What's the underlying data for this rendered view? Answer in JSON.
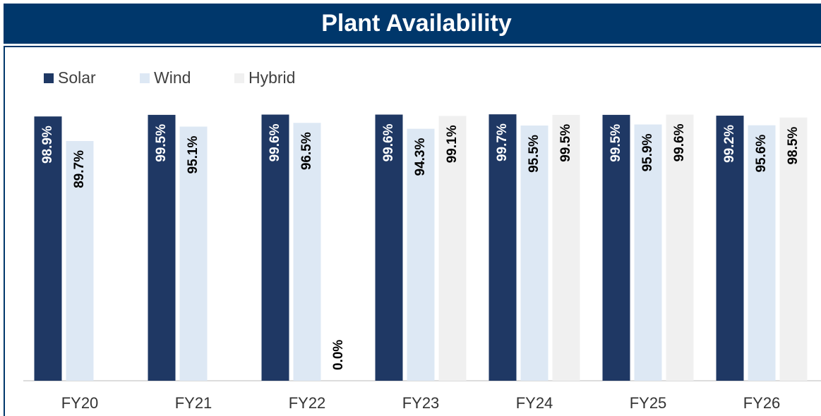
{
  "chart_data": {
    "type": "bar",
    "title": "Plant Availability",
    "categories": [
      "FY20",
      "FY21",
      "FY22",
      "FY23",
      "FY24",
      "FY25",
      "FY26"
    ],
    "series": [
      {
        "name": "Solar",
        "color": "#1f3864",
        "values": [
          98.9,
          99.5,
          99.6,
          99.6,
          99.7,
          99.5,
          99.2
        ],
        "value_labels": [
          "98.9%",
          "99.5%",
          "99.6%",
          "99.6%",
          "99.7%",
          "99.5%",
          "99.2%"
        ]
      },
      {
        "name": "Wind",
        "color": "#dde8f4",
        "values": [
          89.7,
          95.1,
          96.5,
          94.3,
          95.5,
          95.9,
          95.6
        ],
        "value_labels": [
          "89.7%",
          "95.1%",
          "96.5%",
          "94.3%",
          "95.5%",
          "95.9%",
          "95.6%"
        ]
      },
      {
        "name": "Hybrid",
        "color": "#f0f0f0",
        "values": [
          null,
          null,
          0.0,
          99.1,
          99.5,
          99.6,
          98.5
        ],
        "value_labels": [
          null,
          null,
          "0.0%",
          "99.1%",
          "99.5%",
          "99.6%",
          "98.5%"
        ]
      }
    ],
    "ylim": [
      0,
      100
    ],
    "legend": "top-left",
    "grid": false
  }
}
